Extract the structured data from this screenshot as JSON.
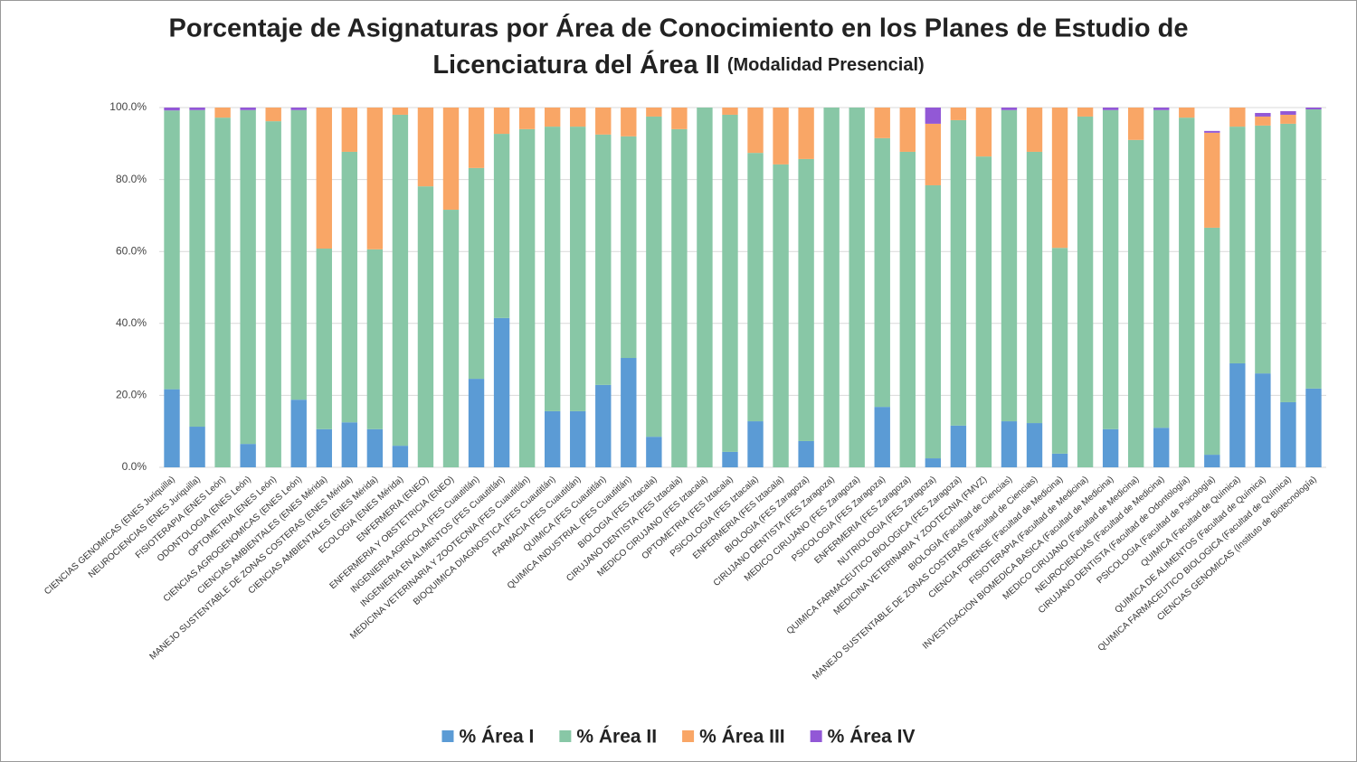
{
  "chart_data": {
    "type": "stacked-bar",
    "title": [
      "Porcentaje de Asignaturas por Área de Conocimiento en los Planes de Estudio de",
      "Licenciatura del Área II"
    ],
    "subtitle": "(Modalidad Presencial)",
    "categories": [
      "CIENCIAS GENOMICAS (ENES Juriquilla)",
      "NEUROCIENCIAS (ENES Juriquilla)",
      "FISIOTERAPIA (ENES León)",
      "ODONTOLOGIA (ENES León)",
      "OPTOMETRIA (ENES León)",
      "CIENCIAS AGROGENOMICAS (ENES León)",
      "CIENCIAS AMBIENTALES (ENES Mérida)",
      "MANEJO SUSTENTABLE DE ZONAS COSTERAS (ENES Mérida)",
      "CIENCIAS AMBIENTALES (ENES Mérida)",
      "ECOLOGIA (ENES Mérida)",
      "ENFERMERIA (ENEO)",
      "ENFERMERIA Y OBSTETRICIA (ENEO)",
      "INGENIERIA AGRICOLA (FES Cuautitlán)",
      "INGENIERIA EN ALIMENTOS (FES Cuautitlán)",
      "MEDICINA VETERINARIA Y ZOOTECNIA (FES Cuautitlán)",
      "BIOQUIMICA DIAGNOSTICA (FES Cuautitlán)",
      "FARMACIA (FES Cuautitlán)",
      "QUIMICA (FES Cuautitlán)",
      "QUIMICA INDUSTRIAL (FES Cuautitlán)",
      "BIOLOGIA (FES Iztacala)",
      "CIRUJANO DENTISTA (FES Iztacala)",
      "MEDICO CIRUJANO (FES Iztacala)",
      "OPTOMETRIA (FES Iztacala)",
      "PSICOLOGIA (FES Iztacala)",
      "ENFERMERIA (FES Iztacala)",
      "BIOLOGIA (FES Zaragoza)",
      "CIRUJANO DENTISTA (FES Zaragoza)",
      "MEDICO CIRUJANO (FES Zaragoza)",
      "PSICOLOGIA (FES Zaragoza)",
      "ENFERMERIA (FES Zaragoza)",
      "NUTRIOLOGIA (FES Zaragoza)",
      "QUIMICA FARMACEUTICO BIOLOGICA (FES Zaragoza)",
      "MEDICINA VETERINARIA Y ZOOTECNIA (FMVZ)",
      "BIOLOGIA (Facultad de Ciencias)",
      "MANEJO SUSTENTABLE DE ZONAS COSTERAS (Facultad de Ciencias)",
      "CIENCIA FORENSE (Facultad de Medicina)",
      "FISIOTERAPIA (Facultad de Medicina)",
      "INVESTIGACION BIOMEDICA BASICA (Facultad de Medicina)",
      "MEDICO CIRUJANO (Facultad de Medicina)",
      "NEUROCIENCIAS (Facultad de Medicina)",
      "CIRUJANO DENTISTA (Facultad de Odontología)",
      "PSICOLOGIA (Facultad de Psicología)",
      "QUIMICA (Facultad de Química)",
      "QUIMICA DE ALIMENTOS (Facultad de Química)",
      "QUIMICA FARMACEUTICO BIOLOGICA (Facultad de Química)",
      "CIENCIAS GENOMICAS (Instituto de Biotecnología)"
    ],
    "series": [
      {
        "name": "% Área I",
        "color": "#5b9bd5",
        "values": [
          21.7,
          11.3,
          0,
          6.5,
          0,
          18.8,
          10.6,
          12.5,
          10.6,
          6,
          0,
          0,
          24.6,
          41.5,
          0,
          15.6,
          15.6,
          22.9,
          30.4,
          8.5,
          0,
          0,
          4.3,
          12.8,
          0,
          7.3,
          0,
          0,
          16.8,
          0,
          2.5,
          11.6,
          0,
          12.8,
          12.3,
          3.8,
          0,
          10.6,
          0,
          11,
          0,
          3.5,
          28.9,
          26.1,
          18.1,
          21.9
        ]
      },
      {
        "name": "% Área II",
        "color": "#88c7a6",
        "values": [
          77.5,
          88,
          97.2,
          92.8,
          96.2,
          80.5,
          50.2,
          75.2,
          50,
          92,
          78.1,
          71.6,
          58.6,
          51.2,
          94,
          79.1,
          79.1,
          69.6,
          61.6,
          89,
          94,
          100,
          93.7,
          74.6,
          84.2,
          78.4,
          100,
          100,
          74.7,
          87.7,
          75.9,
          84.9,
          86.4,
          86.5,
          75.4,
          57.2,
          97.5,
          88.7,
          91,
          88.3,
          97.2,
          63.1,
          65.8,
          68.9,
          77.4,
          77.6
        ]
      },
      {
        "name": "% Área III",
        "color": "#f9a666",
        "values": [
          0,
          0,
          2.8,
          0,
          3.8,
          0,
          39.2,
          12.3,
          39.4,
          2,
          21.9,
          28.4,
          16.8,
          7.3,
          6,
          5.3,
          5.3,
          7.5,
          8,
          2.5,
          6,
          0,
          2,
          12.6,
          15.8,
          14.3,
          0,
          0,
          8.5,
          12.3,
          17.1,
          3.5,
          13.6,
          0,
          12.3,
          39,
          2.5,
          0,
          9,
          0,
          2.8,
          26.4,
          5.3,
          2.5,
          2.5,
          0
        ]
      },
      {
        "name": "% Área IV",
        "color": "#9258d6",
        "values": [
          0.8,
          0.7,
          0,
          0.7,
          0,
          0.7,
          0,
          0,
          0,
          0,
          0,
          0,
          0,
          0,
          0,
          0,
          0,
          0,
          0,
          0,
          0,
          0,
          0,
          0,
          0,
          0,
          0,
          0,
          0,
          0,
          4.5,
          0,
          0,
          0.7,
          0,
          0,
          0,
          0.7,
          0,
          0.7,
          0,
          0.5,
          0,
          1,
          1,
          0.5
        ]
      }
    ],
    "ylim": [
      0,
      100
    ],
    "yticks": [
      {
        "value": 0,
        "label": "0.0%"
      },
      {
        "value": 20,
        "label": "20.0%"
      },
      {
        "value": 40,
        "label": "40.0%"
      },
      {
        "value": 60,
        "label": "60.0%"
      },
      {
        "value": 80,
        "label": "80.0%"
      },
      {
        "value": 100,
        "label": "100.0%"
      }
    ],
    "grid": true,
    "legend": "bottom"
  }
}
